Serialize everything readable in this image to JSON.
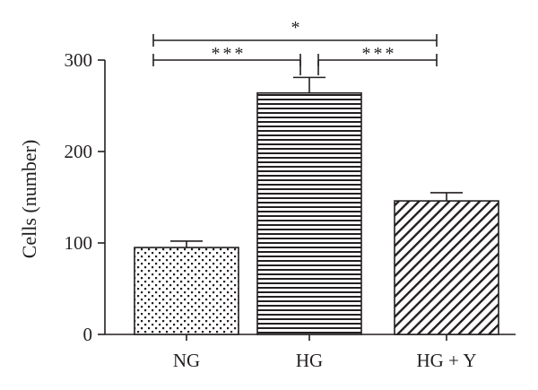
{
  "chart_data": {
    "type": "bar",
    "title": "",
    "xlabel": "",
    "ylabel": "Cells (number)",
    "ylim": [
      0,
      300
    ],
    "yticks": [
      0,
      100,
      200,
      300
    ],
    "grid": false,
    "categories": [
      "NG",
      "HG",
      "HG + Y"
    ],
    "values": [
      95,
      264,
      146
    ],
    "errors": [
      7,
      17,
      9
    ],
    "patterns": [
      "dots",
      "horizontal-lines",
      "diagonal-lines"
    ],
    "significance": [
      {
        "from": 1,
        "to": 2,
        "label": "***"
      },
      {
        "from": 2,
        "to": 3,
        "label": "***"
      },
      {
        "from": 1,
        "to": 3,
        "label": "*"
      }
    ],
    "colors": {
      "ink": "#231f20",
      "background": "#ffffff"
    }
  }
}
